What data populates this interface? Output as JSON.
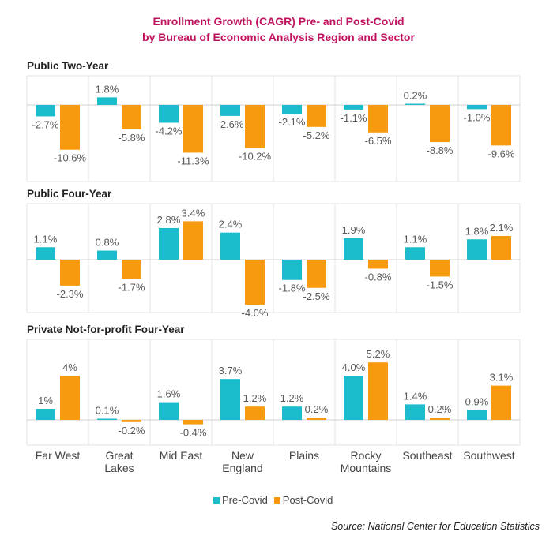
{
  "title_line1": "Enrollment Growth (CAGR) Pre- and Post-Covid",
  "title_line2": "by Bureau of Economic Analysis Region and Sector",
  "source": "Source: National Center for Education Statistics",
  "colors": {
    "pre": "#1bbccb",
    "post": "#f79a0f",
    "title": "#c0135f"
  },
  "chart_data": {
    "type": "bar",
    "categories": [
      "Far West",
      "Great\nLakes",
      "Mid East",
      "New\nEngland",
      "Plains",
      "Rocky\nMountains",
      "Southeast",
      "Southwest"
    ],
    "legend": [
      "Pre-Covid",
      "Post-Covid"
    ],
    "legend_position": "bottom",
    "panels": [
      {
        "title": "Public Two-Year",
        "series": [
          {
            "name": "Pre-Covid",
            "values": [
              -2.7,
              1.8,
              -4.2,
              -2.6,
              -2.1,
              -1.1,
              0.2,
              -1.0
            ],
            "labels": [
              "-2.7%",
              "1.8%",
              "-4.2%",
              "-2.6%",
              "-2.1%",
              "-1.1%",
              "0.2%",
              "-1.0%"
            ]
          },
          {
            "name": "Post-Covid",
            "values": [
              -10.6,
              -5.8,
              -11.3,
              -10.2,
              -5.2,
              -6.5,
              -8.8,
              -9.6
            ],
            "labels": [
              "-10.6%",
              "-5.8%",
              "-11.3%",
              "-10.2%",
              "-5.2%",
              "-6.5%",
              "-8.8%",
              "-9.6%"
            ]
          }
        ]
      },
      {
        "title": "Public Four-Year",
        "series": [
          {
            "name": "Pre-Covid",
            "values": [
              1.1,
              0.8,
              2.8,
              2.4,
              -1.8,
              1.9,
              1.1,
              1.8
            ],
            "labels": [
              "1.1%",
              "0.8%",
              "2.8%",
              "2.4%",
              "-1.8%",
              "1.9%",
              "1.1%",
              "1.8%"
            ]
          },
          {
            "name": "Post-Covid",
            "values": [
              -2.3,
              -1.7,
              3.4,
              -4.0,
              -2.5,
              -0.8,
              -1.5,
              2.1
            ],
            "labels": [
              "-2.3%",
              "-1.7%",
              "3.4%",
              "-4.0%",
              "-2.5%",
              "-0.8%",
              "-1.5%",
              "2.1%"
            ]
          }
        ]
      },
      {
        "title": "Private Not-for-profit Four-Year",
        "series": [
          {
            "name": "Pre-Covid",
            "values": [
              1.0,
              0.1,
              1.6,
              3.7,
              1.2,
              4.0,
              1.4,
              0.9
            ],
            "labels": [
              "1%",
              "0.1%",
              "1.6%",
              "3.7%",
              "1.2%",
              "4.0%",
              "1.4%",
              "0.9%"
            ]
          },
          {
            "name": "Post-Covid",
            "values": [
              4.0,
              -0.2,
              -0.4,
              1.2,
              0.2,
              5.2,
              0.2,
              3.1
            ],
            "labels": [
              "4%",
              "-0.2%",
              "-0.4%",
              "1.2%",
              "0.2%",
              "5.2%",
              "0.2%",
              "3.1%"
            ]
          }
        ]
      }
    ]
  }
}
